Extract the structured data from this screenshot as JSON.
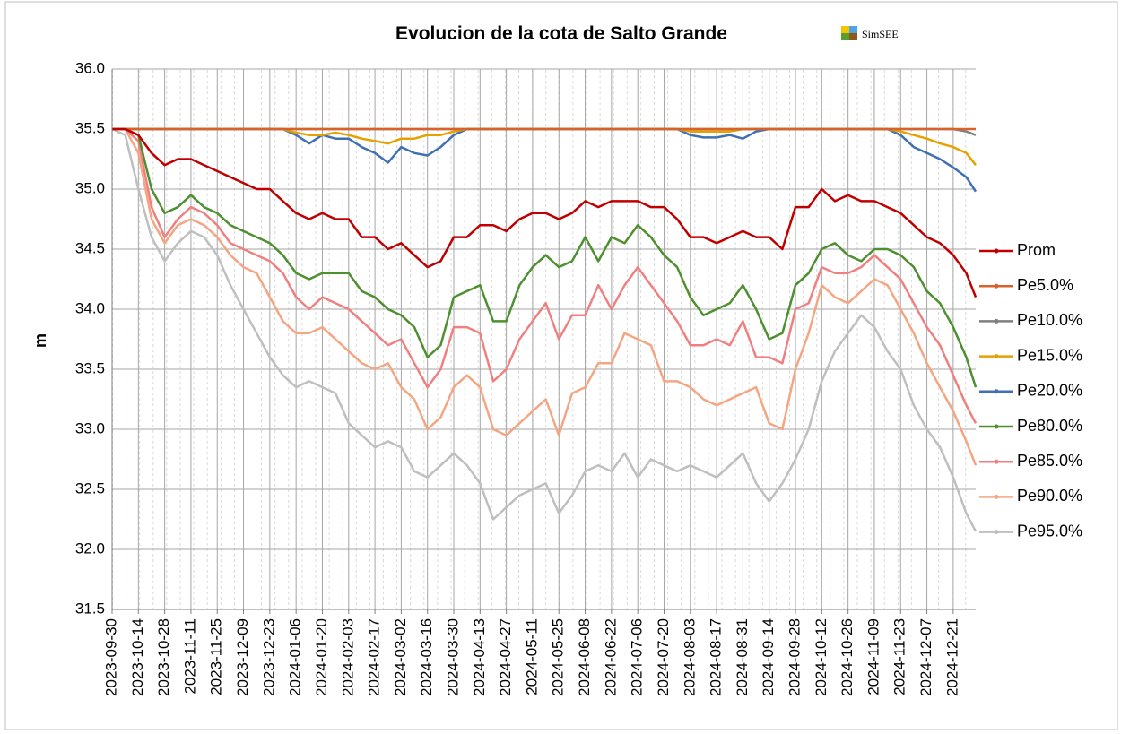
{
  "chart_data": {
    "type": "line",
    "title": "Evolucion de la cota de Salto Grande",
    "logo": "SimSEE",
    "y_label": "m",
    "x": [
      "2023-09-30",
      "2023-10-07",
      "2023-10-14",
      "2023-10-21",
      "2023-10-28",
      "2023-11-04",
      "2023-11-11",
      "2023-11-18",
      "2023-11-25",
      "2023-12-02",
      "2023-12-09",
      "2023-12-16",
      "2023-12-23",
      "2023-12-30",
      "2024-01-06",
      "2024-01-13",
      "2024-01-20",
      "2024-01-27",
      "2024-02-03",
      "2024-02-10",
      "2024-02-17",
      "2024-02-24",
      "2024-03-02",
      "2024-03-09",
      "2024-03-16",
      "2024-03-23",
      "2024-03-30",
      "2024-04-06",
      "2024-04-13",
      "2024-04-20",
      "2024-04-27",
      "2024-05-04",
      "2024-05-11",
      "2024-05-18",
      "2024-05-25",
      "2024-06-01",
      "2024-06-08",
      "2024-06-15",
      "2024-06-22",
      "2024-06-29",
      "2024-07-06",
      "2024-07-13",
      "2024-07-20",
      "2024-07-27",
      "2024-08-03",
      "2024-08-10",
      "2024-08-17",
      "2024-08-24",
      "2024-08-31",
      "2024-09-07",
      "2024-09-14",
      "2024-09-21",
      "2024-09-28",
      "2024-10-05",
      "2024-10-12",
      "2024-10-19",
      "2024-10-26",
      "2024-11-02",
      "2024-11-09",
      "2024-11-16",
      "2024-11-23",
      "2024-11-30",
      "2024-12-07",
      "2024-12-14",
      "2024-12-21",
      "2024-12-28",
      "2025-01-02"
    ],
    "xlim": [
      "2023-09-30",
      "2025-01-02"
    ],
    "xticks": [
      "2023-09-30",
      "2023-10-14",
      "2023-10-28",
      "2023-11-11",
      "2023-11-25",
      "2023-12-09",
      "2023-12-23",
      "2024-01-06",
      "2024-01-20",
      "2024-02-03",
      "2024-02-17",
      "2024-03-02",
      "2024-03-16",
      "2024-03-30",
      "2024-04-13",
      "2024-04-27",
      "2024-05-11",
      "2024-05-25",
      "2024-06-08",
      "2024-06-22",
      "2024-07-06",
      "2024-07-20",
      "2024-08-03",
      "2024-08-17",
      "2024-08-31",
      "2024-09-14",
      "2024-09-28",
      "2024-10-12",
      "2024-10-26",
      "2024-11-09",
      "2024-11-23",
      "2024-12-07",
      "2024-12-21"
    ],
    "ylim": [
      31.5,
      36
    ],
    "yticks": [
      31.5,
      {
        "value": 32,
        "label": "32.0"
      },
      32.5,
      {
        "value": 33,
        "label": "33.0"
      },
      33.5,
      {
        "value": 34,
        "label": "34.0"
      },
      34.5,
      {
        "value": 35,
        "label": "35.0"
      },
      35.5,
      {
        "value": 36,
        "label": "36.0"
      }
    ],
    "grid": true,
    "legend": "right",
    "series": [
      {
        "name": "Prom",
        "color": "#c00000",
        "values": [
          35.5,
          35.5,
          35.45,
          35.3,
          35.2,
          35.25,
          35.25,
          35.2,
          35.15,
          35.1,
          35.05,
          35.0,
          35.0,
          34.9,
          34.8,
          34.75,
          34.8,
          34.75,
          34.75,
          34.6,
          34.6,
          34.5,
          34.55,
          34.45,
          34.35,
          34.4,
          34.6,
          34.6,
          34.7,
          34.7,
          34.65,
          34.75,
          34.8,
          34.8,
          34.75,
          34.8,
          34.9,
          34.85,
          34.9,
          34.9,
          34.9,
          34.85,
          34.85,
          34.75,
          34.6,
          34.6,
          34.55,
          34.6,
          34.65,
          34.6,
          34.6,
          34.5,
          34.85,
          34.85,
          35.0,
          34.9,
          34.95,
          34.9,
          34.9,
          34.85,
          34.8,
          34.7,
          34.6,
          34.55,
          34.45,
          34.3,
          34.1
        ]
      },
      {
        "name": "Pe5.0%",
        "color": "#d9622b",
        "values": [
          35.5,
          35.5,
          35.5,
          35.5,
          35.5,
          35.5,
          35.5,
          35.5,
          35.5,
          35.5,
          35.5,
          35.5,
          35.5,
          35.5,
          35.5,
          35.5,
          35.5,
          35.5,
          35.5,
          35.5,
          35.5,
          35.5,
          35.5,
          35.5,
          35.5,
          35.5,
          35.5,
          35.5,
          35.5,
          35.5,
          35.5,
          35.5,
          35.5,
          35.5,
          35.5,
          35.5,
          35.5,
          35.5,
          35.5,
          35.5,
          35.5,
          35.5,
          35.5,
          35.5,
          35.5,
          35.5,
          35.5,
          35.5,
          35.5,
          35.5,
          35.5,
          35.5,
          35.5,
          35.5,
          35.5,
          35.5,
          35.5,
          35.5,
          35.5,
          35.5,
          35.5,
          35.5,
          35.5,
          35.5,
          35.5,
          35.5,
          35.5
        ]
      },
      {
        "name": "Pe10.0%",
        "color": "#7f7f7f",
        "values": [
          35.5,
          35.5,
          35.5,
          35.5,
          35.5,
          35.5,
          35.5,
          35.5,
          35.5,
          35.5,
          35.5,
          35.5,
          35.5,
          35.5,
          35.5,
          35.5,
          35.5,
          35.5,
          35.5,
          35.5,
          35.5,
          35.5,
          35.5,
          35.5,
          35.5,
          35.5,
          35.5,
          35.5,
          35.5,
          35.5,
          35.5,
          35.5,
          35.5,
          35.5,
          35.5,
          35.5,
          35.5,
          35.5,
          35.5,
          35.5,
          35.5,
          35.5,
          35.5,
          35.5,
          35.5,
          35.5,
          35.5,
          35.5,
          35.5,
          35.5,
          35.5,
          35.5,
          35.5,
          35.5,
          35.5,
          35.5,
          35.5,
          35.5,
          35.5,
          35.5,
          35.5,
          35.5,
          35.5,
          35.5,
          35.5,
          35.48,
          35.45
        ]
      },
      {
        "name": "Pe15.0%",
        "color": "#e6a100",
        "values": [
          35.5,
          35.5,
          35.5,
          35.5,
          35.5,
          35.5,
          35.5,
          35.5,
          35.5,
          35.5,
          35.5,
          35.5,
          35.5,
          35.5,
          35.47,
          35.45,
          35.45,
          35.47,
          35.45,
          35.42,
          35.4,
          35.38,
          35.42,
          35.42,
          35.45,
          35.45,
          35.48,
          35.5,
          35.5,
          35.5,
          35.5,
          35.5,
          35.5,
          35.5,
          35.5,
          35.5,
          35.5,
          35.5,
          35.5,
          35.5,
          35.5,
          35.5,
          35.5,
          35.5,
          35.48,
          35.48,
          35.48,
          35.48,
          35.5,
          35.5,
          35.5,
          35.5,
          35.5,
          35.5,
          35.5,
          35.5,
          35.5,
          35.5,
          35.5,
          35.5,
          35.48,
          35.45,
          35.42,
          35.38,
          35.35,
          35.3,
          35.2
        ]
      },
      {
        "name": "Pe20.0%",
        "color": "#3f6fb5",
        "values": [
          35.5,
          35.5,
          35.5,
          35.5,
          35.5,
          35.5,
          35.5,
          35.5,
          35.5,
          35.5,
          35.5,
          35.5,
          35.5,
          35.5,
          35.45,
          35.38,
          35.45,
          35.42,
          35.42,
          35.35,
          35.3,
          35.22,
          35.35,
          35.3,
          35.28,
          35.35,
          35.45,
          35.5,
          35.5,
          35.5,
          35.5,
          35.5,
          35.5,
          35.5,
          35.5,
          35.5,
          35.5,
          35.5,
          35.5,
          35.5,
          35.5,
          35.5,
          35.5,
          35.5,
          35.45,
          35.43,
          35.43,
          35.45,
          35.42,
          35.48,
          35.5,
          35.5,
          35.5,
          35.5,
          35.5,
          35.5,
          35.5,
          35.5,
          35.5,
          35.5,
          35.45,
          35.35,
          35.3,
          35.25,
          35.18,
          35.1,
          34.98
        ]
      },
      {
        "name": "Pe80.0%",
        "color": "#4e8f2f",
        "values": [
          35.5,
          35.5,
          35.45,
          35.0,
          34.8,
          34.85,
          34.95,
          34.85,
          34.8,
          34.7,
          34.65,
          34.6,
          34.55,
          34.45,
          34.3,
          34.25,
          34.3,
          34.3,
          34.3,
          34.15,
          34.1,
          34.0,
          33.95,
          33.85,
          33.6,
          33.7,
          34.1,
          34.15,
          34.2,
          33.9,
          33.9,
          34.2,
          34.35,
          34.45,
          34.35,
          34.4,
          34.6,
          34.4,
          34.6,
          34.55,
          34.7,
          34.6,
          34.45,
          34.35,
          34.1,
          33.95,
          34.0,
          34.05,
          34.2,
          34.0,
          33.75,
          33.8,
          34.2,
          34.3,
          34.5,
          34.55,
          34.45,
          34.4,
          34.5,
          34.5,
          34.45,
          34.35,
          34.15,
          34.05,
          33.85,
          33.6,
          33.35
        ]
      },
      {
        "name": "Pe85.0%",
        "color": "#f08080",
        "values": [
          35.5,
          35.5,
          35.4,
          34.85,
          34.6,
          34.75,
          34.85,
          34.8,
          34.7,
          34.55,
          34.5,
          34.45,
          34.4,
          34.3,
          34.1,
          34.0,
          34.1,
          34.05,
          34.0,
          33.9,
          33.8,
          33.7,
          33.75,
          33.55,
          33.35,
          33.5,
          33.85,
          33.85,
          33.8,
          33.4,
          33.5,
          33.75,
          33.9,
          34.05,
          33.75,
          33.95,
          33.95,
          34.2,
          34.0,
          34.2,
          34.35,
          34.2,
          34.05,
          33.9,
          33.7,
          33.7,
          33.75,
          33.7,
          33.9,
          33.6,
          33.6,
          33.55,
          34.0,
          34.05,
          34.35,
          34.3,
          34.3,
          34.35,
          34.45,
          34.35,
          34.25,
          34.05,
          33.85,
          33.7,
          33.45,
          33.2,
          33.05
        ]
      },
      {
        "name": "Pe90.0%",
        "color": "#f4a582",
        "values": [
          35.5,
          35.5,
          35.3,
          34.75,
          34.55,
          34.7,
          34.75,
          34.7,
          34.6,
          34.45,
          34.35,
          34.3,
          34.1,
          33.9,
          33.8,
          33.8,
          33.85,
          33.75,
          33.65,
          33.55,
          33.5,
          33.55,
          33.35,
          33.25,
          33.0,
          33.1,
          33.35,
          33.45,
          33.35,
          33.0,
          32.95,
          33.05,
          33.15,
          33.25,
          32.95,
          33.3,
          33.35,
          33.55,
          33.55,
          33.8,
          33.75,
          33.7,
          33.4,
          33.4,
          33.35,
          33.25,
          33.2,
          33.25,
          33.3,
          33.35,
          33.05,
          33.0,
          33.5,
          33.8,
          34.2,
          34.1,
          34.05,
          34.15,
          34.25,
          34.2,
          34.0,
          33.8,
          33.55,
          33.35,
          33.15,
          32.9,
          32.7
        ]
      },
      {
        "name": "Pe95.0%",
        "color": "#bfbfbf",
        "values": [
          35.5,
          35.45,
          35.0,
          34.6,
          34.4,
          34.55,
          34.65,
          34.6,
          34.45,
          34.2,
          34.0,
          33.8,
          33.6,
          33.45,
          33.35,
          33.4,
          33.35,
          33.3,
          33.05,
          32.95,
          32.85,
          32.9,
          32.85,
          32.65,
          32.6,
          32.7,
          32.8,
          32.7,
          32.55,
          32.25,
          32.35,
          32.45,
          32.5,
          32.55,
          32.3,
          32.45,
          32.65,
          32.7,
          32.65,
          32.8,
          32.6,
          32.75,
          32.7,
          32.65,
          32.7,
          32.65,
          32.6,
          32.7,
          32.8,
          32.55,
          32.4,
          32.55,
          32.75,
          33.0,
          33.4,
          33.65,
          33.8,
          33.95,
          33.85,
          33.65,
          33.5,
          33.2,
          33.0,
          32.85,
          32.6,
          32.3,
          32.15
        ]
      }
    ]
  }
}
